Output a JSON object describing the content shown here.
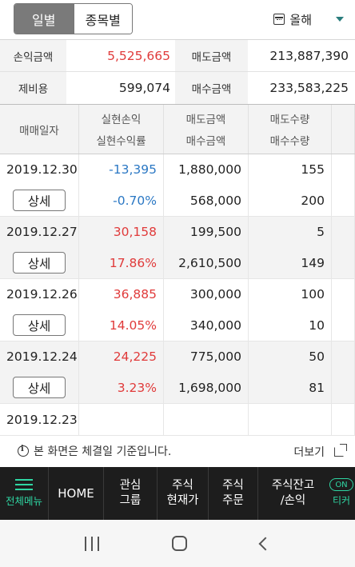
{
  "tabs": {
    "daily": "일별",
    "by_stock": "종목별"
  },
  "period": {
    "label": "올해"
  },
  "summary": {
    "profit_label": "손익금액",
    "profit_value": "5,525,665",
    "sell_label": "매도금액",
    "sell_value": "213,887,390",
    "fee_label": "제비용",
    "fee_value": "599,074",
    "buy_label": "매수금액",
    "buy_value": "233,583,225"
  },
  "table": {
    "headers": {
      "date": "매매일자",
      "realized_pnl": "실현손익",
      "realized_rate": "실현수익률",
      "sell_amount": "매도금액",
      "buy_amount": "매수금액",
      "sell_qty": "매도수량",
      "buy_qty": "매수수량"
    },
    "detail_label": "상세",
    "rows": [
      {
        "date": "2019.12.30",
        "pnl": "-13,395",
        "rate": "-0.70%",
        "sell_amt": "1,880,000",
        "buy_amt": "568,000",
        "sell_qty": "155",
        "buy_qty": "200"
      },
      {
        "date": "2019.12.27",
        "pnl": "30,158",
        "rate": "17.86%",
        "sell_amt": "199,500",
        "buy_amt": "2,610,500",
        "sell_qty": "5",
        "buy_qty": "149"
      },
      {
        "date": "2019.12.26",
        "pnl": "36,885",
        "rate": "14.05%",
        "sell_amt": "300,000",
        "buy_amt": "340,000",
        "sell_qty": "100",
        "buy_qty": "10"
      },
      {
        "date": "2019.12.24",
        "pnl": "24,225",
        "rate": "3.23%",
        "sell_amt": "775,000",
        "buy_amt": "1,698,000",
        "sell_qty": "50",
        "buy_qty": "81"
      },
      {
        "date": "2019.12.23"
      }
    ]
  },
  "notice": {
    "text": "본 화면은 체결일 기준입니다.",
    "more": "더보기"
  },
  "menu": {
    "all": "전체메뉴",
    "home": "HOME",
    "interest_1": "관심",
    "interest_2": "그룹",
    "stock_price_1": "주식",
    "stock_price_2": "현재가",
    "stock_order_1": "주식",
    "stock_order_2": "주문",
    "balance_1": "주식잔고",
    "balance_2": "/손익",
    "ticker_on": "ON",
    "ticker": "티커"
  },
  "icons": [
    "calendar-icon",
    "dropdown-caret-icon",
    "info-icon",
    "external-link-icon",
    "hamburger-icon",
    "recents-icon",
    "home-icon",
    "back-icon"
  ],
  "colors": {
    "negative": "#2b78c4",
    "positive": "#e03a3a",
    "accent": "#2fd6a3",
    "menu_bg": "#1d1d1d"
  }
}
